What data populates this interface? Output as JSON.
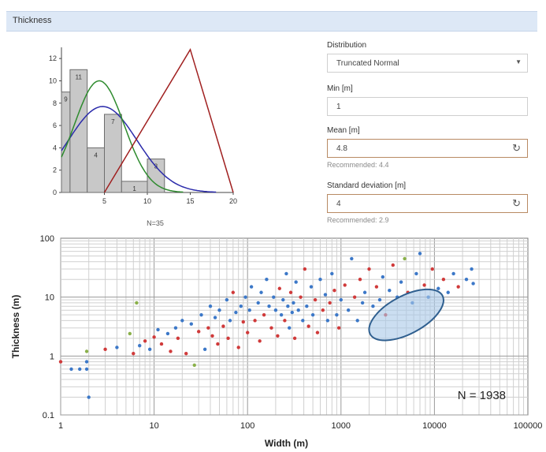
{
  "panel": {
    "title": "Thickness"
  },
  "form": {
    "distribution_label": "Distribution",
    "distribution_value": "Truncated Normal",
    "min_label": "Min [m]",
    "min_value": "1",
    "mean_label": "Mean [m]",
    "mean_value": "4.8",
    "mean_hint": "Recommended: 4.4",
    "std_label": "Standard deviation [m]",
    "std_value": "4",
    "std_hint": "Recommended: 2.9"
  },
  "histogram": {
    "type": "bar",
    "bins": [
      {
        "x0": 0,
        "x1": 1,
        "count": 9,
        "label": "9"
      },
      {
        "x0": 1,
        "x1": 3,
        "count": 11,
        "label": "11"
      },
      {
        "x0": 3,
        "x1": 5,
        "count": 4,
        "label": "4"
      },
      {
        "x0": 5,
        "x1": 7,
        "count": 7,
        "label": "7"
      },
      {
        "x0": 7,
        "x1": 10,
        "count": 1,
        "label": "1"
      },
      {
        "x0": 10,
        "x1": 12,
        "count": 3,
        "label": "3"
      }
    ],
    "x_ticks": [
      "5",
      "10",
      "15",
      "20"
    ],
    "y_ticks": [
      "0",
      "2",
      "4",
      "6",
      "8",
      "10",
      "12"
    ],
    "xlim": [
      0,
      20
    ],
    "ylim": [
      0,
      13
    ],
    "caption": "N=35",
    "curves": {
      "green_normal": {
        "mean": 4.4,
        "sd": 2.9,
        "peak": 10,
        "color": "#2e8b2e"
      },
      "blue_normal": {
        "mean": 4.8,
        "sd": 4,
        "peak": 7.7,
        "color": "#2b2bab"
      },
      "red_triangle": {
        "points": [
          [
            5,
            0
          ],
          [
            15,
            12.8
          ],
          [
            20,
            0
          ]
        ],
        "color": "#a02020"
      }
    }
  },
  "chart_data": {
    "type": "scatter",
    "xlabel": "Width (m)",
    "ylabel": "Thickness (m)",
    "x_scale": "log",
    "y_scale": "log",
    "xlim": [
      1,
      100000
    ],
    "ylim": [
      0.1,
      100
    ],
    "x_ticks": [
      "1",
      "10",
      "100",
      "1000",
      "10000",
      "100000"
    ],
    "y_ticks": [
      "0.1",
      "1",
      "10",
      "100"
    ],
    "grid": true,
    "annotation": "N = 1938",
    "highlight_ellipse": {
      "cx": 5000,
      "cy": 5,
      "color": "#a8c8e8"
    },
    "colors": {
      "red": "#d03a3a",
      "blue": "#3c78c8",
      "green": "#8ab04a"
    },
    "points": [
      {
        "x": 1,
        "y": 0.8,
        "c": "red"
      },
      {
        "x": 1.3,
        "y": 0.6,
        "c": "blue"
      },
      {
        "x": 1.6,
        "y": 0.6,
        "c": "blue"
      },
      {
        "x": 1.9,
        "y": 0.6,
        "c": "blue"
      },
      {
        "x": 2,
        "y": 0.2,
        "c": "blue"
      },
      {
        "x": 1.9,
        "y": 1.2,
        "c": "green"
      },
      {
        "x": 1.9,
        "y": 0.8,
        "c": "blue"
      },
      {
        "x": 3,
        "y": 1.3,
        "c": "red"
      },
      {
        "x": 4,
        "y": 1.4,
        "c": "blue"
      },
      {
        "x": 5.5,
        "y": 2.4,
        "c": "green"
      },
      {
        "x": 6,
        "y": 1.1,
        "c": "red"
      },
      {
        "x": 6.5,
        "y": 8,
        "c": "green"
      },
      {
        "x": 7,
        "y": 1.5,
        "c": "blue"
      },
      {
        "x": 8,
        "y": 1.8,
        "c": "red"
      },
      {
        "x": 9,
        "y": 1.3,
        "c": "blue"
      },
      {
        "x": 10,
        "y": 2.1,
        "c": "red"
      },
      {
        "x": 11,
        "y": 2.8,
        "c": "blue"
      },
      {
        "x": 12,
        "y": 1.6,
        "c": "red"
      },
      {
        "x": 14,
        "y": 2.4,
        "c": "blue"
      },
      {
        "x": 15,
        "y": 1.2,
        "c": "red"
      },
      {
        "x": 17,
        "y": 3,
        "c": "blue"
      },
      {
        "x": 18,
        "y": 2,
        "c": "red"
      },
      {
        "x": 20,
        "y": 4,
        "c": "blue"
      },
      {
        "x": 22,
        "y": 1.1,
        "c": "red"
      },
      {
        "x": 25,
        "y": 3.5,
        "c": "blue"
      },
      {
        "x": 27,
        "y": 0.7,
        "c": "green"
      },
      {
        "x": 30,
        "y": 2.6,
        "c": "red"
      },
      {
        "x": 32,
        "y": 5,
        "c": "blue"
      },
      {
        "x": 35,
        "y": 1.3,
        "c": "blue"
      },
      {
        "x": 38,
        "y": 3,
        "c": "red"
      },
      {
        "x": 40,
        "y": 7,
        "c": "blue"
      },
      {
        "x": 42,
        "y": 2.2,
        "c": "red"
      },
      {
        "x": 45,
        "y": 4.5,
        "c": "blue"
      },
      {
        "x": 48,
        "y": 1.6,
        "c": "red"
      },
      {
        "x": 50,
        "y": 6,
        "c": "blue"
      },
      {
        "x": 55,
        "y": 3.2,
        "c": "red"
      },
      {
        "x": 60,
        "y": 9,
        "c": "blue"
      },
      {
        "x": 62,
        "y": 2,
        "c": "red"
      },
      {
        "x": 65,
        "y": 4,
        "c": "blue"
      },
      {
        "x": 70,
        "y": 12,
        "c": "red"
      },
      {
        "x": 75,
        "y": 5.5,
        "c": "blue"
      },
      {
        "x": 80,
        "y": 1.4,
        "c": "red"
      },
      {
        "x": 85,
        "y": 7,
        "c": "blue"
      },
      {
        "x": 90,
        "y": 3.8,
        "c": "red"
      },
      {
        "x": 95,
        "y": 10,
        "c": "blue"
      },
      {
        "x": 100,
        "y": 2.5,
        "c": "red"
      },
      {
        "x": 105,
        "y": 6,
        "c": "blue"
      },
      {
        "x": 110,
        "y": 15,
        "c": "blue"
      },
      {
        "x": 120,
        "y": 4,
        "c": "red"
      },
      {
        "x": 130,
        "y": 8,
        "c": "blue"
      },
      {
        "x": 135,
        "y": 1.8,
        "c": "red"
      },
      {
        "x": 140,
        "y": 12,
        "c": "blue"
      },
      {
        "x": 150,
        "y": 5,
        "c": "red"
      },
      {
        "x": 160,
        "y": 20,
        "c": "blue"
      },
      {
        "x": 170,
        "y": 7,
        "c": "blue"
      },
      {
        "x": 180,
        "y": 3,
        "c": "red"
      },
      {
        "x": 190,
        "y": 10,
        "c": "blue"
      },
      {
        "x": 200,
        "y": 6,
        "c": "blue"
      },
      {
        "x": 210,
        "y": 2.2,
        "c": "red"
      },
      {
        "x": 220,
        "y": 14,
        "c": "red"
      },
      {
        "x": 230,
        "y": 5,
        "c": "blue"
      },
      {
        "x": 240,
        "y": 9,
        "c": "blue"
      },
      {
        "x": 250,
        "y": 4,
        "c": "red"
      },
      {
        "x": 260,
        "y": 25,
        "c": "blue"
      },
      {
        "x": 270,
        "y": 7,
        "c": "blue"
      },
      {
        "x": 280,
        "y": 3,
        "c": "blue"
      },
      {
        "x": 290,
        "y": 12,
        "c": "red"
      },
      {
        "x": 300,
        "y": 5.5,
        "c": "blue"
      },
      {
        "x": 310,
        "y": 8,
        "c": "blue"
      },
      {
        "x": 320,
        "y": 2,
        "c": "red"
      },
      {
        "x": 330,
        "y": 18,
        "c": "blue"
      },
      {
        "x": 350,
        "y": 6,
        "c": "blue"
      },
      {
        "x": 370,
        "y": 10,
        "c": "red"
      },
      {
        "x": 390,
        "y": 4,
        "c": "blue"
      },
      {
        "x": 410,
        "y": 30,
        "c": "red"
      },
      {
        "x": 430,
        "y": 7,
        "c": "blue"
      },
      {
        "x": 450,
        "y": 3.2,
        "c": "red"
      },
      {
        "x": 480,
        "y": 15,
        "c": "blue"
      },
      {
        "x": 500,
        "y": 5,
        "c": "blue"
      },
      {
        "x": 530,
        "y": 9,
        "c": "red"
      },
      {
        "x": 560,
        "y": 2.5,
        "c": "red"
      },
      {
        "x": 600,
        "y": 20,
        "c": "blue"
      },
      {
        "x": 640,
        "y": 6,
        "c": "red"
      },
      {
        "x": 680,
        "y": 11,
        "c": "blue"
      },
      {
        "x": 720,
        "y": 4,
        "c": "blue"
      },
      {
        "x": 760,
        "y": 8,
        "c": "red"
      },
      {
        "x": 800,
        "y": 25,
        "c": "blue"
      },
      {
        "x": 850,
        "y": 13,
        "c": "red"
      },
      {
        "x": 900,
        "y": 5,
        "c": "blue"
      },
      {
        "x": 950,
        "y": 3,
        "c": "red"
      },
      {
        "x": 1000,
        "y": 9,
        "c": "blue"
      },
      {
        "x": 1100,
        "y": 16,
        "c": "red"
      },
      {
        "x": 1200,
        "y": 6,
        "c": "blue"
      },
      {
        "x": 1300,
        "y": 45,
        "c": "blue"
      },
      {
        "x": 1400,
        "y": 10,
        "c": "red"
      },
      {
        "x": 1500,
        "y": 4,
        "c": "blue"
      },
      {
        "x": 1600,
        "y": 20,
        "c": "red"
      },
      {
        "x": 1700,
        "y": 8,
        "c": "blue"
      },
      {
        "x": 1800,
        "y": 12,
        "c": "blue"
      },
      {
        "x": 2000,
        "y": 30,
        "c": "red"
      },
      {
        "x": 2200,
        "y": 7,
        "c": "blue"
      },
      {
        "x": 2400,
        "y": 15,
        "c": "red"
      },
      {
        "x": 2600,
        "y": 9,
        "c": "blue"
      },
      {
        "x": 2800,
        "y": 22,
        "c": "blue"
      },
      {
        "x": 3000,
        "y": 5,
        "c": "red"
      },
      {
        "x": 3300,
        "y": 13,
        "c": "blue"
      },
      {
        "x": 3600,
        "y": 35,
        "c": "red"
      },
      {
        "x": 4000,
        "y": 10,
        "c": "blue"
      },
      {
        "x": 4400,
        "y": 18,
        "c": "blue"
      },
      {
        "x": 4800,
        "y": 45,
        "c": "green"
      },
      {
        "x": 5200,
        "y": 12,
        "c": "red"
      },
      {
        "x": 5800,
        "y": 8,
        "c": "blue"
      },
      {
        "x": 6400,
        "y": 25,
        "c": "blue"
      },
      {
        "x": 7000,
        "y": 55,
        "c": "blue"
      },
      {
        "x": 7800,
        "y": 16,
        "c": "red"
      },
      {
        "x": 8600,
        "y": 10,
        "c": "blue"
      },
      {
        "x": 9500,
        "y": 30,
        "c": "red"
      },
      {
        "x": 11000,
        "y": 14,
        "c": "blue"
      },
      {
        "x": 12500,
        "y": 20,
        "c": "red"
      },
      {
        "x": 14000,
        "y": 12,
        "c": "blue"
      },
      {
        "x": 16000,
        "y": 25,
        "c": "blue"
      },
      {
        "x": 18000,
        "y": 15,
        "c": "red"
      },
      {
        "x": 22000,
        "y": 20,
        "c": "blue"
      },
      {
        "x": 25000,
        "y": 30,
        "c": "blue"
      },
      {
        "x": 26000,
        "y": 17,
        "c": "blue"
      }
    ]
  }
}
